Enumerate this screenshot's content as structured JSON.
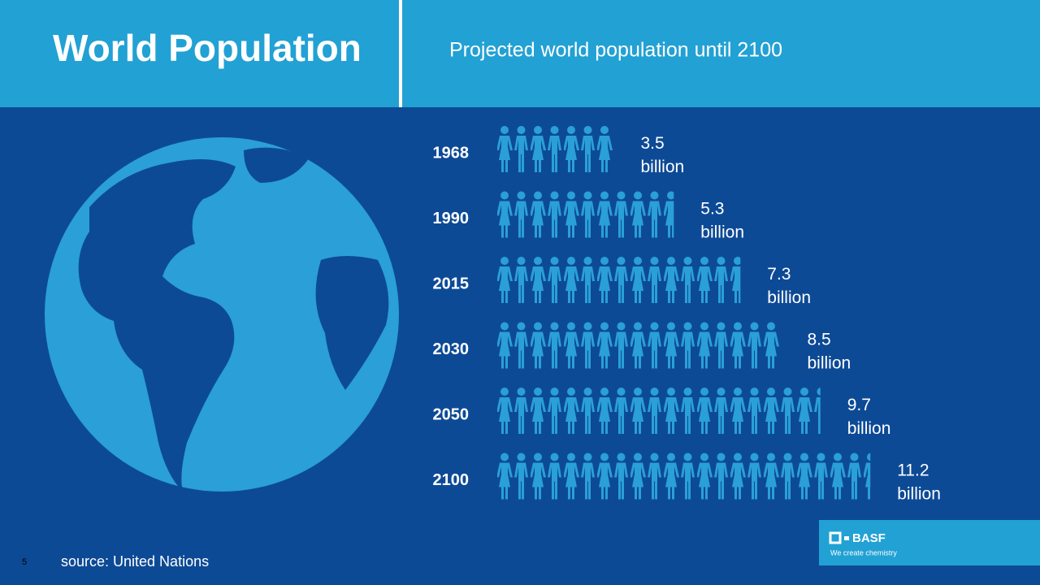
{
  "chart_data": {
    "type": "pictogram",
    "title": "World Population",
    "subtitle": "Projected world population until 2100",
    "categories": [
      "1968",
      "1990",
      "2015",
      "2030",
      "2050",
      "2100"
    ],
    "values": [
      3.5,
      5.3,
      7.3,
      8.5,
      9.7,
      11.2
    ],
    "value_labels": [
      "3.5 billion",
      "5.3 billion",
      "7.3 billion",
      "8.5 billion",
      "9.7 billion",
      "11.2 billion"
    ],
    "color": "#2a9fd8",
    "source": "source: United Nations"
  },
  "slide": {
    "page_number": "5"
  },
  "logo": {
    "name": "BASF",
    "tagline": "We create chemistry"
  }
}
